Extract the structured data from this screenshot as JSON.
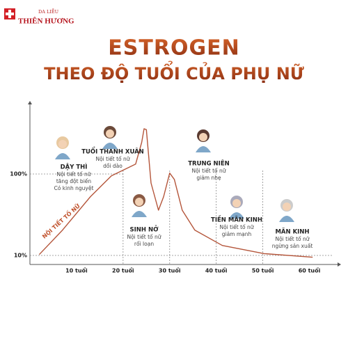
{
  "logo": {
    "top": "DA LIỄU",
    "name": "THIÊN HƯƠNG"
  },
  "chart_data": {
    "type": "line",
    "title": "ESTROGEN",
    "subtitle": "THEO ĐỘ TUỔI CỦA PHỤ NỮ",
    "curve_label": "NỘI TIẾT TỐ NỮ",
    "x": [
      2,
      7,
      13,
      17.5,
      22.7,
      24,
      24.5,
      25,
      26,
      27.6,
      28.7,
      30,
      31,
      32.7,
      35.4,
      41.3,
      50.3,
      60.7
    ],
    "series": [
      {
        "name": "Estrogen",
        "color": "#b4553a",
        "values": [
          11,
          38,
          75,
          98,
          111,
          135,
          150,
          149,
          90,
          60,
          75,
          101,
          94,
          60,
          38,
          21,
          12,
          8
        ]
      }
    ],
    "xlim": [
      0,
      65
    ],
    "xticks": [
      {
        "value": 10,
        "label": "10 tuổi"
      },
      {
        "value": 20,
        "label": "20 tuổi"
      },
      {
        "value": 30,
        "label": "30 tuổi"
      },
      {
        "value": 40,
        "label": "40 tuổi"
      },
      {
        "value": 50,
        "label": "50 tuổi"
      },
      {
        "value": 60,
        "label": "60 tuổi"
      }
    ],
    "ylim": [
      0,
      170
    ],
    "yticks": [
      {
        "value": 10,
        "label": "10%"
      },
      {
        "value": 100,
        "label": "100%"
      }
    ],
    "annotations": [
      {
        "title": "DẬY THÌ",
        "lines": [
          "Nội tiết tố nữ",
          "tăng đột biến",
          "Có kinh nguyệt"
        ]
      },
      {
        "title": "TUỔI THANH XUÂN",
        "lines": [
          "Nội tiết tố nữ",
          "dồi dào"
        ]
      },
      {
        "title": "SINH NỞ",
        "lines": [
          "Nội tiết tố nữ",
          "rối loạn"
        ]
      },
      {
        "title": "TRUNG NIÊN",
        "lines": [
          "Nội tiết tố nữ",
          "giảm nhẹ"
        ]
      },
      {
        "title": "TIỀN MÃN KINH",
        "lines": [
          "Nội tiết tố nữ",
          "giảm mạnh"
        ]
      },
      {
        "title": "MÃN KINH",
        "lines": [
          "Nội tiết tố nữ",
          "ngừng sản xuất"
        ]
      }
    ]
  }
}
